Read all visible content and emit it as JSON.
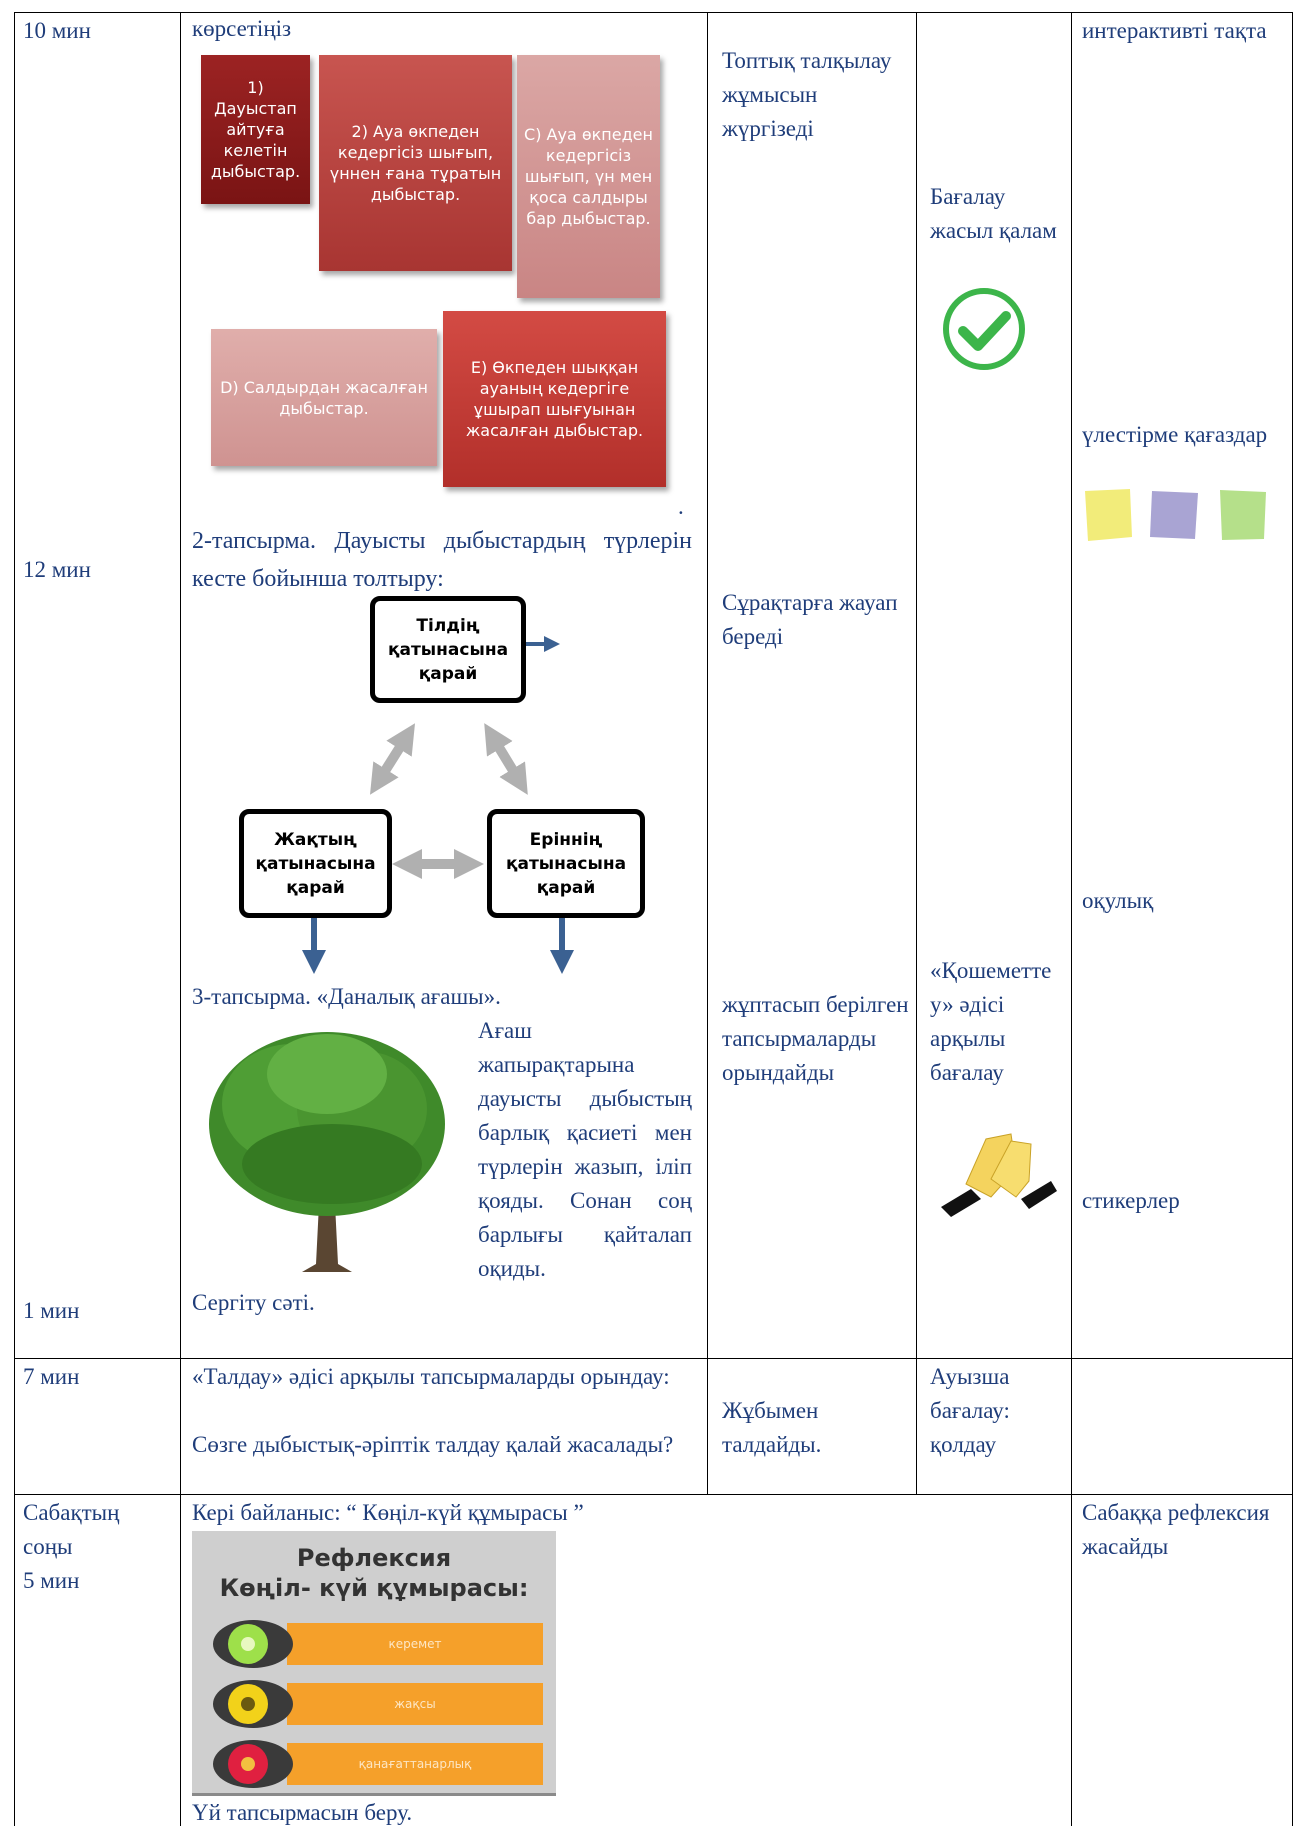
{
  "table": {
    "rows": [
      {
        "time": [
          "10 мин",
          "12 мин",
          "1 мин"
        ],
        "content": {
          "intro": "көрсетіңіз",
          "boxes": [
            "1) Дауыстап айтуға келетін дыбыстар.",
            "2) Ауа өкпеден кедергісіз шығып, үннен ғана тұратын дыбыстар.",
            "C) Ауа өкпеден кедергісіз шығып, үн мен қоса салдыры бар дыбыстар.",
            "D) Салдырдан жасалған дыбыстар.",
            "E) Өкпеден шыққан ауаның кедергіге ұшырап шығуынан жасалған дыбыстар."
          ],
          "dot": ".",
          "task2": "2-тапсырма. Дауысты дыбыстардың түрлерін кесте бойынша толтыру:",
          "nodes": [
            "Тілдің қатынасына қарай",
            "Жақтың қатынасына қарай",
            "Еріннің қатынасына қарай"
          ],
          "task3": "3-тапсырма. «Даналық ағашы».",
          "task3_text": "Ағаш жапырақтарына дауысты дыбыстың барлық қасиеті мен түрлерін жазып, іліп қояды. Сонан соң барлығы қайталап оқиды.",
          "break": "Сергіту сәті."
        },
        "students": [
          "Топтық талқылау жұмысын жүргізеді",
          "Сұрақтарға жауап береді",
          "жұптасып берілген тапсырмаларды орындайды"
        ],
        "assessment": [
          "Бағалау жасыл қалам",
          "«Қошеметтеу» әдісі арқылы бағалау"
        ],
        "resources": [
          "интерактивті тақта",
          "үлестірме қағаздар",
          "оқулық",
          "стикерлер"
        ]
      },
      {
        "time": [
          "7 мин"
        ],
        "content": [
          "«Талдау» әдісі арқылы тапсырмаларды орындау:",
          "Сөзге дыбыстық-әріптік талдау қалай жасалады?"
        ],
        "students": [
          "Жұбымен талдайды."
        ],
        "assessment": [
          "Ауызша бағалау: қолдау"
        ]
      },
      {
        "time": [
          "Сабақтың соңы",
          "5 мин"
        ],
        "content": {
          "feedback": "Кері байланыс: “ Көңіл-күй құмырасы ”",
          "image": {
            "title": "Рефлексия",
            "subtitle": "Көңіл- күй құмырасы:",
            "options": [
              "керемет",
              "жақсы",
              "қанағаттанарлық"
            ]
          },
          "homework": "Үй тапсырмасын беру."
        },
        "resources": [
          "Сабаққа рефлексия жасайды"
        ]
      }
    ]
  }
}
